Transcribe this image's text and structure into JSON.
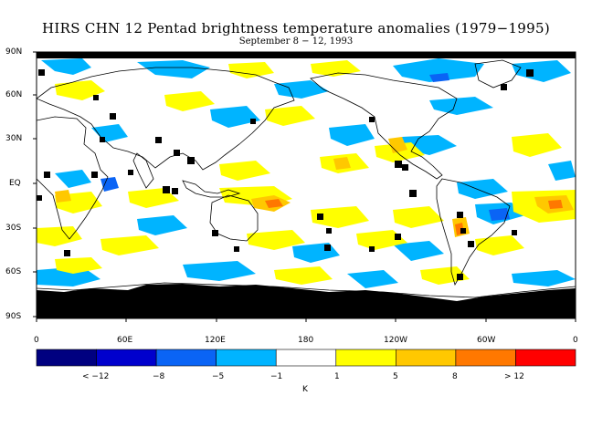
{
  "title": "HIRS CHN 12 Pentad brightness temperature anomalies (1979−1995)",
  "subtitle": "September 8 − 12, 1993",
  "lat_labels": [
    "90N",
    "60N",
    "30N",
    "EQ",
    "30S",
    "60S",
    "90S"
  ],
  "lon_labels": [
    "0",
    "60E",
    "120E",
    "180",
    "120W",
    "60W",
    "0"
  ],
  "colorbar": {
    "colors": [
      "#000080",
      "#0000cd",
      "#0a64f5",
      "#00b4ff",
      "#ffffff",
      "#ffff00",
      "#ffc800",
      "#ff7800",
      "#ff0000"
    ],
    "boundary_labels": [
      "< −12",
      "−8",
      "−5",
      "−1",
      "1",
      "5",
      "8",
      "> 12"
    ],
    "unit": "K"
  }
}
